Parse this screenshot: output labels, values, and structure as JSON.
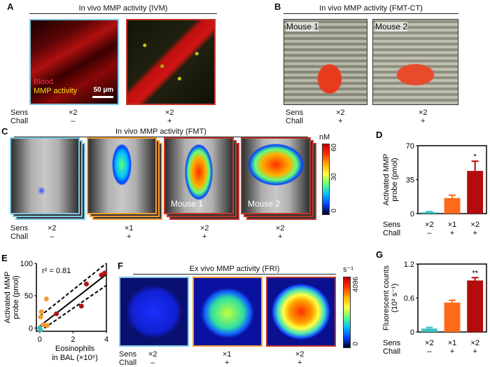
{
  "panels": {
    "A": {
      "label": "A",
      "title": "In vivo MMP activity (IVM)",
      "legend_blood": "Blood",
      "legend_mmp": "MMP activity",
      "scale": "50 µm",
      "cols": [
        {
          "sens": "×2",
          "chall": "–",
          "border": "#7ec8e3"
        },
        {
          "sens": "×2",
          "chall": "+",
          "border": "#c0392b"
        }
      ]
    },
    "B": {
      "label": "B",
      "title": "In vivo MMP activity (FMT-CT)",
      "mouse1": "Mouse 1",
      "mouse2": "Mouse 2",
      "cols": [
        {
          "sens": "×2",
          "chall": "+"
        },
        {
          "sens": "×2",
          "chall": "+"
        }
      ]
    },
    "C": {
      "label": "C",
      "title": "In vivo MMP activity (FMT)",
      "unit": "nM",
      "ticks": [
        "60",
        "30",
        "0"
      ],
      "mouse1": "Mouse 1",
      "mouse2": "Mouse 2",
      "cols": [
        {
          "sens": "×2",
          "chall": "–"
        },
        {
          "sens": "×1",
          "chall": "+"
        },
        {
          "sens": "×2",
          "chall": "+"
        },
        {
          "sens": "×2",
          "chall": "+"
        }
      ]
    },
    "F": {
      "label": "F",
      "title": "Ex vivo MMP activity (FRI)",
      "unit": "s⁻¹",
      "ticks": [
        "4096",
        "0"
      ],
      "cols": [
        {
          "sens": "×2",
          "chall": "–"
        },
        {
          "sens": "×1",
          "chall": "+"
        },
        {
          "sens": "×2",
          "chall": "+"
        }
      ]
    },
    "row_labels": {
      "sens": "Sens",
      "chall": "Chall"
    }
  },
  "chart_data": [
    {
      "panel": "D",
      "label": "D",
      "type": "bar",
      "ylabel": "Activated MMP probe (pmol)",
      "ylim": [
        0,
        70
      ],
      "yticks": [
        "0",
        "35",
        "70"
      ],
      "categories": [
        {
          "sens": "×2",
          "chall": "–"
        },
        {
          "sens": "×1",
          "chall": "+"
        },
        {
          "sens": "×2",
          "chall": "+"
        }
      ],
      "values": [
        1.5,
        16,
        44
      ],
      "errors": [
        0.5,
        3,
        10
      ],
      "colors": [
        "#3cc1c0",
        "#ff6a1a",
        "#b30c0c"
      ],
      "annotations": [
        "",
        "",
        "*"
      ]
    },
    {
      "panel": "E",
      "label": "E",
      "type": "scatter",
      "ylabel": "Activated MMP probe (pmol)",
      "xlabel": "Eosinophils in BAL (×10⁶)",
      "xlim": [
        -0.2,
        4
      ],
      "ylim": [
        -5,
        100
      ],
      "xticks": [
        "0",
        "2",
        "4"
      ],
      "yticks": [
        "0",
        "50",
        "100"
      ],
      "annotation": "r² = 0.81",
      "fit": {
        "x": [
          0,
          4
        ],
        "y": [
          3,
          83
        ]
      },
      "points": [
        {
          "x": 0,
          "y": 0,
          "c": "#3cc1c0"
        },
        {
          "x": 0.05,
          "y": -3,
          "c": "#3cc1c0"
        },
        {
          "x": 0.1,
          "y": 25,
          "c": "#f39c32"
        },
        {
          "x": 0.05,
          "y": 17,
          "c": "#f39c32"
        },
        {
          "x": 0.4,
          "y": 45,
          "c": "#f39c32"
        },
        {
          "x": 0.45,
          "y": 4,
          "c": "#f39c32"
        },
        {
          "x": 0.2,
          "y": 5,
          "c": "#f39c32"
        },
        {
          "x": 1.0,
          "y": 22,
          "c": "#b01515"
        },
        {
          "x": 2.5,
          "y": 34,
          "c": "#b01515"
        },
        {
          "x": 2.8,
          "y": 68,
          "c": "#b01515"
        },
        {
          "x": 3.7,
          "y": 82,
          "c": "#b01515"
        },
        {
          "x": 3.9,
          "y": 85,
          "c": "#b01515"
        }
      ]
    },
    {
      "panel": "G",
      "label": "G",
      "type": "bar",
      "ylabel": "Fluorescent counts (10³ s⁻¹)",
      "ylim": [
        0,
        1.2
      ],
      "yticks": [
        "0",
        "0.6",
        "1.2"
      ],
      "categories": [
        {
          "sens": "×2",
          "chall": "–"
        },
        {
          "sens": "×1",
          "chall": "+"
        },
        {
          "sens": "×2",
          "chall": "+"
        }
      ],
      "values": [
        0.06,
        0.52,
        0.91
      ],
      "errors": [
        0.02,
        0.04,
        0.05
      ],
      "colors": [
        "#3cc1c0",
        "#ff6a1a",
        "#b30c0c"
      ],
      "annotations": [
        "",
        "",
        "**"
      ]
    }
  ]
}
